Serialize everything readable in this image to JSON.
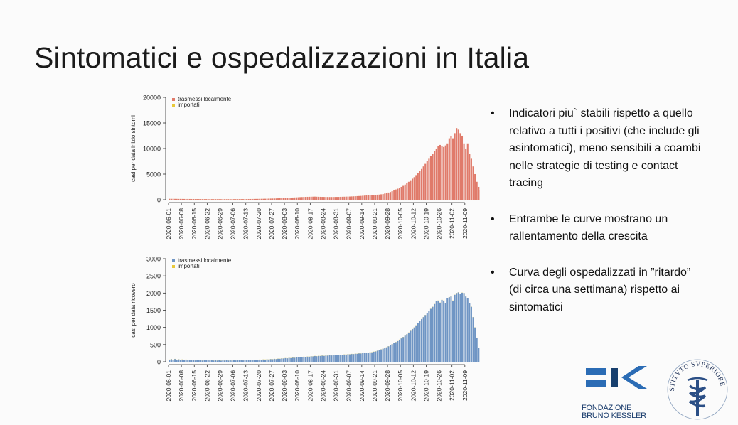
{
  "slide": {
    "title": "Sintomatici e ospedalizzazioni in Italia"
  },
  "bullets": [
    "Indicatori piu` stabili rispetto a quello relativo a tutti i positivi (che include gli asintomatici), meno sensibili a coambi nelle strategie di testing e contact tracing",
    "Entrambe le curve mostrano un rallentamento della crescita",
    "Curva degli ospedalizzati in ”ritardo” (di circa una settimana) rispetto ai sintomatici"
  ],
  "logos": {
    "fbk_line1": "FONDAZIONE",
    "fbk_line2": "BRUNO KESSLER",
    "iss_text": "ISTITVTO SVPERIORE DI SANITÀ"
  },
  "chart_data": [
    {
      "type": "bar",
      "ylabel": "casi per data inizio sintomi",
      "ylim": [
        0,
        20000
      ],
      "yticks": [
        0,
        5000,
        10000,
        15000,
        20000
      ],
      "x_start": "2020-06-01",
      "x_end": "2020-11-11",
      "xticks": [
        "2020-06-01",
        "2020-06-08",
        "2020-06-15",
        "2020-06-22",
        "2020-06-29",
        "2020-07-06",
        "2020-07-13",
        "2020-07-20",
        "2020-07-27",
        "2020-08-03",
        "2020-08-10",
        "2020-08-17",
        "2020-08-24",
        "2020-08-31",
        "2020-09-07",
        "2020-09-14",
        "2020-09-21",
        "2020-09-28",
        "2020-10-05",
        "2020-10-12",
        "2020-10-19",
        "2020-10-26",
        "2020-11-02",
        "2020-11-09"
      ],
      "legend_position": "top-left",
      "series": [
        {
          "name": "trasmessi localmente",
          "color": "#e07a6a",
          "values": [
            180,
            170,
            175,
            165,
            160,
            150,
            155,
            150,
            145,
            140,
            145,
            140,
            135,
            135,
            130,
            130,
            125,
            125,
            120,
            120,
            125,
            120,
            115,
            115,
            110,
            115,
            110,
            110,
            105,
            110,
            110,
            105,
            110,
            110,
            115,
            110,
            115,
            115,
            120,
            120,
            125,
            130,
            130,
            135,
            140,
            145,
            150,
            155,
            160,
            170,
            175,
            180,
            190,
            200,
            210,
            220,
            230,
            240,
            250,
            270,
            280,
            300,
            320,
            340,
            360,
            380,
            400,
            420,
            440,
            460,
            480,
            500,
            520,
            540,
            550,
            560,
            570,
            580,
            590,
            600,
            580,
            570,
            560,
            550,
            545,
            540,
            535,
            530,
            530,
            535,
            540,
            545,
            550,
            560,
            570,
            580,
            600,
            610,
            620,
            640,
            660,
            680,
            700,
            720,
            740,
            770,
            800,
            830,
            860,
            880,
            900,
            920,
            950,
            980,
            1000,
            1050,
            1100,
            1200,
            1300,
            1400,
            1500,
            1650,
            1800,
            2000,
            2150,
            2300,
            2500,
            2700,
            2950,
            3200,
            3500,
            3800,
            4100,
            4400,
            4800,
            5200,
            5600,
            6000,
            6500,
            7000,
            7500,
            8000,
            8500,
            9000,
            9500,
            10000,
            10500,
            10700,
            10500,
            10300,
            10600,
            11000,
            12000,
            12500,
            12000,
            13000,
            14000,
            13700,
            13000,
            12500,
            11000,
            10000,
            11000,
            9000,
            8000,
            6500,
            5000,
            3500,
            2500,
            1800,
            1600
          ]
        },
        {
          "name": "importati",
          "color": "#e8c93a",
          "values": [
            6,
            6,
            6,
            6,
            6,
            6,
            6,
            6,
            6,
            6,
            6,
            6,
            6,
            6,
            6,
            6,
            6,
            6,
            6,
            6,
            6,
            6,
            6,
            6,
            6,
            6,
            6,
            6,
            6,
            6,
            6,
            6,
            6,
            6,
            6,
            6,
            6,
            6,
            6,
            6,
            6,
            6,
            6,
            6,
            6,
            6,
            6,
            6,
            6,
            6,
            6,
            6,
            6,
            6,
            6,
            6,
            6,
            6,
            6,
            6,
            6,
            6,
            6,
            6,
            6,
            6,
            6,
            6,
            6,
            6,
            6,
            6,
            6,
            6,
            6,
            6,
            6,
            6,
            6,
            6,
            6,
            6,
            6,
            6,
            6,
            6,
            6,
            6,
            6,
            6,
            6,
            6,
            6,
            6,
            6,
            6,
            6,
            6,
            6,
            6,
            6,
            6,
            6,
            6,
            6,
            6,
            6,
            6,
            6,
            6,
            6,
            6,
            6,
            6,
            6,
            6,
            6,
            6,
            6,
            6,
            6,
            6,
            6,
            6,
            6,
            6,
            6,
            6,
            6,
            6,
            6,
            6,
            6,
            6,
            6,
            6,
            6,
            6,
            6,
            6,
            6,
            6,
            6,
            6,
            6,
            6,
            6,
            6,
            6,
            6,
            6,
            6,
            6,
            6,
            6,
            6,
            6,
            6,
            6,
            6,
            6,
            6,
            6,
            6,
            6,
            6,
            6,
            6,
            6,
            6,
            6,
            6,
            6,
            6,
            6
          ]
        }
      ]
    },
    {
      "type": "bar",
      "ylabel": "casi per data ricovero",
      "ylim": [
        0,
        3000
      ],
      "yticks": [
        0,
        500,
        1000,
        1500,
        2000,
        2500,
        3000
      ],
      "x_start": "2020-06-01",
      "x_end": "2020-11-11",
      "xticks": [
        "2020-06-01",
        "2020-06-08",
        "2020-06-15",
        "2020-06-22",
        "2020-06-29",
        "2020-07-06",
        "2020-07-13",
        "2020-07-20",
        "2020-07-27",
        "2020-08-03",
        "2020-08-10",
        "2020-08-17",
        "2020-08-24",
        "2020-08-31",
        "2020-09-07",
        "2020-09-14",
        "2020-09-21",
        "2020-09-28",
        "2020-10-05",
        "2020-10-12",
        "2020-10-19",
        "2020-10-26",
        "2020-11-02",
        "2020-11-09"
      ],
      "legend_position": "top-left",
      "series": [
        {
          "name": "trasmessi localmente",
          "color": "#6f95c4",
          "values": [
            60,
            75,
            55,
            80,
            50,
            70,
            45,
            65,
            55,
            60,
            45,
            58,
            42,
            55,
            40,
            52,
            45,
            50,
            38,
            48,
            42,
            52,
            40,
            45,
            38,
            50,
            36,
            46,
            34,
            44,
            38,
            48,
            36,
            45,
            38,
            46,
            40,
            48,
            42,
            50,
            40,
            48,
            44,
            52,
            46,
            54,
            48,
            56,
            50,
            60,
            58,
            66,
            62,
            70,
            66,
            76,
            72,
            82,
            78,
            88,
            86,
            96,
            94,
            104,
            100,
            112,
            108,
            120,
            116,
            128,
            124,
            136,
            132,
            144,
            140,
            150,
            148,
            158,
            156,
            166,
            162,
            170,
            168,
            176,
            172,
            180,
            178,
            186,
            184,
            192,
            188,
            196,
            194,
            202,
            200,
            210,
            208,
            218,
            216,
            226,
            224,
            234,
            232,
            242,
            240,
            252,
            250,
            262,
            260,
            274,
            276,
            292,
            300,
            320,
            340,
            360,
            380,
            400,
            420,
            450,
            480,
            510,
            540,
            570,
            600,
            640,
            680,
            720,
            760,
            800,
            850,
            900,
            950,
            1000,
            1060,
            1120,
            1180,
            1240,
            1300,
            1360,
            1420,
            1480,
            1540,
            1600,
            1680,
            1760,
            1780,
            1720,
            1800,
            1780,
            1700,
            1850,
            1880,
            1900,
            1780,
            1950,
            2000,
            2020,
            1980,
            2010,
            2000,
            1900,
            1850,
            1700,
            1600,
            1300,
            1000,
            700,
            400
          ]
        },
        {
          "name": "importati",
          "color": "#e8c93a",
          "values": [
            4,
            4,
            4,
            4,
            4,
            4,
            4,
            4,
            4,
            4,
            4,
            4,
            4,
            4,
            4,
            4,
            4,
            4,
            4,
            4,
            4,
            4,
            4,
            4,
            4,
            4,
            4,
            4,
            4,
            4,
            4,
            4,
            4,
            4,
            4,
            4,
            4,
            4,
            4,
            4,
            4,
            4,
            4,
            4,
            4,
            4,
            4,
            4,
            4,
            4,
            4,
            4,
            4,
            4,
            4,
            4,
            4,
            4,
            4,
            4,
            4,
            4,
            4,
            4,
            4,
            4,
            4,
            4,
            4,
            4,
            4,
            4,
            4,
            4,
            4,
            4,
            4,
            4,
            4,
            4,
            4,
            4,
            4,
            4,
            4,
            4,
            4,
            4,
            4,
            4,
            4,
            4,
            4,
            4,
            4,
            4,
            4,
            4,
            4,
            4,
            4,
            4,
            4,
            4,
            4,
            4,
            4,
            4,
            4,
            4,
            4,
            4,
            4,
            4,
            4,
            4,
            4,
            4,
            4,
            4,
            4,
            4,
            4,
            4,
            4,
            4,
            4,
            4,
            4,
            4,
            4,
            4,
            4,
            4,
            4,
            4,
            4,
            4,
            4,
            4,
            4,
            4,
            4,
            4,
            4,
            4,
            4,
            4,
            4,
            4,
            4,
            4,
            4,
            4,
            4,
            4,
            4,
            4,
            4,
            4,
            4,
            4,
            4,
            4,
            4,
            4,
            4,
            4,
            4,
            4,
            4,
            4,
            4,
            4,
            4
          ]
        }
      ]
    }
  ]
}
